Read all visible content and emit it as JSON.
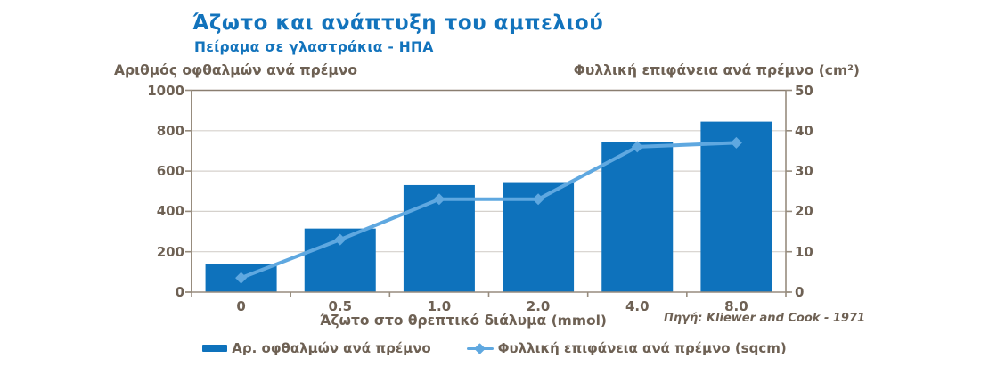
{
  "header": {
    "title": "Άζωτο και ανάπτυξη του αμπελιού",
    "subtitle": "Πείραμα σε γλαστράκια - ΗΠΑ"
  },
  "source": "Πηγή: Kliewer and Cook - 1971",
  "colors": {
    "title_blue": "#1273bc",
    "bar_blue": "#0e72bc",
    "line_blue": "#5fa8e0",
    "axis_text": "#6e6154",
    "frame": "#978c7e",
    "grid": "#d5d1cc"
  },
  "legend": [
    {
      "label": "Αρ. οφθαλμών ανά πρέμνο",
      "type": "bar",
      "color": "#0e72bc"
    },
    {
      "label": "Φυλλική επιφάνεια ανά πρέμνο (sqcm)",
      "type": "line",
      "marker": "diamond",
      "color": "#5fa8e0"
    }
  ],
  "chart_data": {
    "type": "bar",
    "subtype": "combo-bar-line",
    "title": "Άζωτο και ανάπτυξη του αμπελιού",
    "subtitle": "Πείραμα σε γλαστράκια - ΗΠΑ",
    "xlabel": "Άζωτο στο θρεπτικό διάλυμα (mmol)",
    "categories": [
      "0",
      "0.5",
      "1.0",
      "2.0",
      "4.0",
      "8.0"
    ],
    "series": [
      {
        "name": "Αρ. οφθαλμών ανά πρέμνο",
        "type": "bar",
        "axis": "left",
        "color": "#0e72bc",
        "values": [
          140,
          315,
          530,
          545,
          745,
          845
        ]
      },
      {
        "name": "Φυλλική επιφάνεια ανά πρέμνο (sqcm)",
        "type": "line",
        "axis": "right",
        "color": "#5fa8e0",
        "marker": "diamond",
        "values": [
          3.5,
          13,
          23,
          23,
          36,
          37
        ]
      }
    ],
    "left_axis": {
      "title": "Αριθμός οφθαλμών ανά πρέμνο",
      "ticks": [
        "0",
        "200",
        "400",
        "600",
        "800",
        "1000"
      ],
      "min": 0,
      "max": 1000
    },
    "right_axis": {
      "title": "Φυλλική επιφάνεια ανά πρέμνο (cm²)",
      "ticks": [
        "0",
        "10",
        "20",
        "30",
        "40",
        "50"
      ],
      "min": 0,
      "max": 50
    },
    "grid": true,
    "legend_position": "bottom"
  }
}
